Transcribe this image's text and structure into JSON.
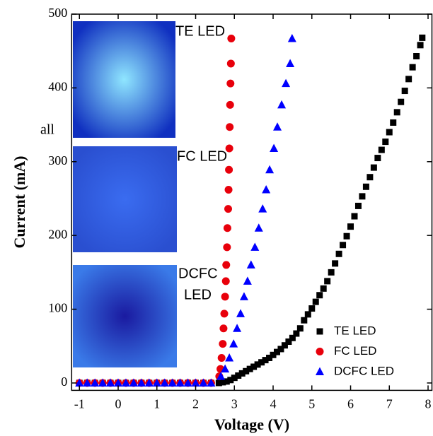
{
  "chart_data": {
    "type": "scatter",
    "xlabel": "Voltage (V)",
    "ylabel": "Current (mA)",
    "xlim": [
      -1.2,
      8.1
    ],
    "ylim": [
      -10,
      500
    ],
    "xticks": [
      -1,
      0,
      1,
      2,
      3,
      4,
      5,
      6,
      7,
      8
    ],
    "yticks": [
      0,
      100,
      200,
      300,
      400,
      500
    ],
    "legend": "lower right",
    "annotations": [
      "TE LED",
      "FC LED",
      "DCFC",
      "LED",
      "all"
    ],
    "series": [
      {
        "name": "TE LED",
        "color": "#000000",
        "marker": "square",
        "x": [
          -1,
          -0.8,
          -0.6,
          -0.4,
          -0.2,
          0,
          0.2,
          0.4,
          0.6,
          0.8,
          1,
          1.2,
          1.4,
          1.6,
          1.8,
          2,
          2.2,
          2.4,
          2.6,
          2.7,
          2.8,
          2.9,
          3.0,
          3.1,
          3.2,
          3.3,
          3.4,
          3.5,
          3.6,
          3.7,
          3.8,
          3.9,
          4.0,
          4.1,
          4.2,
          4.3,
          4.4,
          4.5,
          4.6,
          4.7,
          4.8,
          4.9,
          5.0,
          5.1,
          5.2,
          5.3,
          5.4,
          5.5,
          5.6,
          5.7,
          5.8,
          5.9,
          6.0,
          6.1,
          6.2,
          6.3,
          6.4,
          6.5,
          6.6,
          6.7,
          6.8,
          6.9,
          7.0,
          7.1,
          7.2,
          7.3,
          7.4,
          7.5,
          7.6,
          7.7,
          7.8,
          7.85
        ],
        "values": [
          0,
          0,
          0,
          0,
          0,
          0,
          0,
          0,
          0,
          0,
          0,
          0,
          0,
          0,
          0,
          0,
          0,
          0,
          0,
          1,
          2,
          4,
          7,
          10,
          13,
          16,
          19,
          22,
          25,
          28,
          31,
          34,
          38,
          42,
          46,
          51,
          56,
          61,
          67,
          74,
          85,
          93,
          101,
          110,
          119,
          128,
          138,
          150,
          162,
          175,
          187,
          199,
          212,
          226,
          240,
          253,
          266,
          279,
          292,
          305,
          316,
          327,
          340,
          353,
          367,
          381,
          396,
          412,
          428,
          443,
          458,
          468
        ]
      },
      {
        "name": "FC LED",
        "color": "#e8000b",
        "marker": "circle",
        "x": [
          -1,
          -0.8,
          -0.6,
          -0.4,
          -0.2,
          0,
          0.2,
          0.4,
          0.6,
          0.8,
          1,
          1.2,
          1.4,
          1.6,
          1.8,
          2,
          2.2,
          2.4,
          2.61,
          2.64,
          2.67,
          2.7,
          2.72,
          2.74,
          2.76,
          2.78,
          2.79,
          2.81,
          2.82,
          2.84,
          2.85,
          2.86,
          2.87,
          2.88,
          2.89,
          2.9,
          2.91,
          2.92
        ],
        "values": [
          0,
          0,
          0,
          0,
          0,
          0,
          0,
          0,
          0,
          0,
          0,
          0,
          0,
          0,
          0,
          0,
          0,
          0,
          9,
          19,
          34,
          53,
          74,
          94,
          117,
          138,
          160,
          184,
          210,
          236,
          262,
          289,
          318,
          347,
          377,
          406,
          433,
          467
        ]
      },
      {
        "name": "DCFC LED",
        "color": "#0000ff",
        "marker": "triangle",
        "x": [
          -1,
          -0.8,
          -0.6,
          -0.4,
          -0.2,
          0,
          0.2,
          0.4,
          0.6,
          0.8,
          1,
          1.2,
          1.4,
          1.6,
          1.8,
          2,
          2.2,
          2.4,
          2.65,
          2.76,
          2.87,
          2.98,
          3.07,
          3.16,
          3.25,
          3.34,
          3.43,
          3.53,
          3.63,
          3.73,
          3.82,
          3.91,
          4.02,
          4.11,
          4.22,
          4.33,
          4.44,
          4.49
        ],
        "values": [
          0,
          0,
          0,
          0,
          0,
          0,
          0,
          0,
          0,
          0,
          0,
          0,
          0,
          0,
          0,
          0,
          0,
          0,
          9,
          19,
          34,
          53,
          74,
          94,
          117,
          138,
          160,
          184,
          210,
          236,
          262,
          289,
          318,
          347,
          377,
          406,
          433,
          467
        ]
      }
    ]
  }
}
